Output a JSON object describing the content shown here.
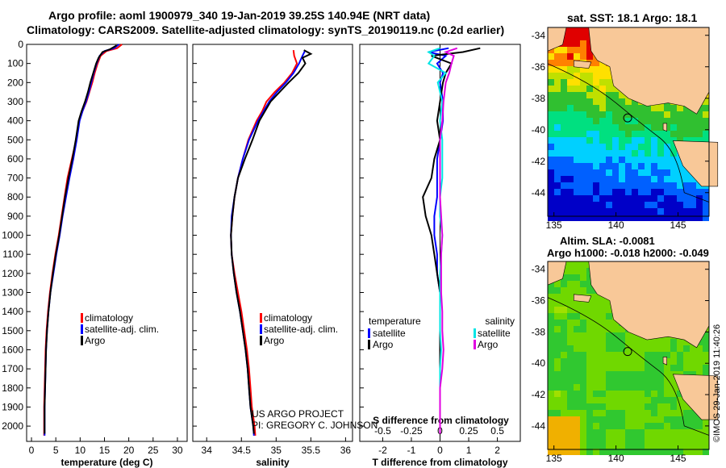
{
  "title_line1": "Argo profile: aoml 1900979_340 19-Jan-2019 39.25S 140.94E (NRT data)",
  "title_line2": "Climatology: CARS2009. Satellite-adjusted climatology: synTS_20190119.nc (0.2d earlier)",
  "credit_line1": "US ARGO PROJECT",
  "credit_line2": "PI: GREGORY C. JOHNSON",
  "timestamp": "©IMOS 29-Jan-2019 11:40:26",
  "colors": {
    "climatology": "#ff0000",
    "satellite": "#0000ff",
    "argo": "#000000",
    "sal_satellite": "#00e5e5",
    "sal_argo": "#e000e0",
    "land": "#f8c898"
  },
  "chart_data": [
    {
      "type": "line",
      "xlabel": "temperature (deg C)",
      "ylabel": "",
      "xlim": [
        -1,
        32
      ],
      "ylim": [
        2080,
        0
      ],
      "xticks": [
        0,
        5,
        10,
        15,
        20,
        25,
        30
      ],
      "yticks": [
        0,
        100,
        200,
        300,
        400,
        500,
        600,
        700,
        800,
        900,
        1000,
        1100,
        1200,
        1300,
        1400,
        1500,
        1600,
        1700,
        1800,
        1900,
        2000
      ],
      "legend": [
        "climatology",
        "satellite-adj. clim.",
        "Argo"
      ],
      "series": [
        {
          "name": "climatology",
          "color": "#ff0000",
          "x": [
            18.6,
            17.6,
            15.4,
            14.2,
            13.6,
            13.0,
            12.5,
            11.9,
            11.3,
            10.5,
            9.8,
            9.2,
            8.3,
            7.4,
            6.8,
            6.2,
            5.6,
            4.9,
            4.3,
            3.8,
            3.4,
            3.1,
            2.9,
            2.8,
            2.7,
            2.6,
            2.6
          ],
          "y": [
            0,
            20,
            35,
            60,
            100,
            150,
            200,
            250,
            300,
            350,
            400,
            500,
            600,
            700,
            800,
            900,
            1000,
            1100,
            1200,
            1300,
            1400,
            1500,
            1600,
            1700,
            1800,
            1900,
            2050
          ]
        },
        {
          "name": "satellite-adj. clim.",
          "color": "#0000ff",
          "x": [
            18.0,
            17.0,
            15.0,
            14.0,
            13.4,
            12.8,
            12.3,
            11.8,
            11.2,
            10.5,
            9.9,
            9.3,
            8.6,
            7.8,
            7.1,
            6.4,
            5.8,
            5.1,
            4.5,
            3.9,
            3.5,
            3.2,
            3.0,
            2.9,
            2.8,
            2.7,
            2.7
          ],
          "y": [
            0,
            20,
            35,
            60,
            100,
            150,
            200,
            250,
            300,
            350,
            400,
            500,
            600,
            700,
            800,
            900,
            1000,
            1100,
            1200,
            1300,
            1400,
            1500,
            1600,
            1700,
            1800,
            1900,
            2050
          ]
        },
        {
          "name": "Argo",
          "color": "#000000",
          "x": [
            17.5,
            16.2,
            14.6,
            13.8,
            13.3,
            12.7,
            12.1,
            11.6,
            11.0,
            10.3,
            9.7,
            9.1,
            8.4,
            7.6,
            6.9,
            6.3,
            5.7,
            5.0,
            4.4,
            3.9,
            3.5,
            3.2,
            3.0,
            2.9,
            2.8,
            2.7,
            2.7
          ],
          "y": [
            5,
            25,
            40,
            70,
            100,
            150,
            200,
            250,
            300,
            350,
            400,
            500,
            600,
            700,
            800,
            900,
            1000,
            1100,
            1200,
            1300,
            1400,
            1500,
            1600,
            1700,
            1800,
            1900,
            2040
          ]
        }
      ]
    },
    {
      "type": "line",
      "xlabel": "salinity",
      "ylabel": "",
      "xlim": [
        33.8,
        36.1
      ],
      "ylim": [
        2080,
        0
      ],
      "xticks": [
        34,
        34.5,
        35,
        35.5,
        36
      ],
      "legend": [
        "climatology",
        "satellite-adj. clim.",
        "Argo"
      ],
      "series": [
        {
          "name": "climatology",
          "color": "#ff0000",
          "x": [
            35.25,
            35.26,
            35.3,
            35.23,
            35.12,
            34.98,
            34.86,
            34.8,
            34.72,
            34.6,
            34.52,
            34.45,
            34.4,
            34.37,
            34.35,
            34.36,
            34.4,
            34.45,
            34.5,
            34.54,
            34.58,
            34.61,
            34.63,
            34.65,
            34.67,
            34.69,
            34.7
          ],
          "y": [
            30,
            60,
            100,
            150,
            200,
            250,
            300,
            350,
            400,
            500,
            600,
            700,
            800,
            900,
            1000,
            1100,
            1200,
            1300,
            1400,
            1500,
            1600,
            1700,
            1800,
            1900,
            1950,
            2000,
            2050
          ]
        },
        {
          "name": "satellite-adj. clim.",
          "color": "#0000ff",
          "x": [
            35.42,
            35.38,
            35.33,
            35.25,
            35.14,
            35.01,
            34.9,
            34.82,
            34.74,
            34.61,
            34.52,
            34.45,
            34.4,
            34.36,
            34.35,
            34.36,
            34.39,
            34.43,
            34.48,
            34.52,
            34.56,
            34.59,
            34.61,
            34.63,
            34.65,
            34.67,
            34.68
          ],
          "y": [
            30,
            60,
            100,
            150,
            200,
            250,
            300,
            350,
            400,
            500,
            600,
            700,
            800,
            900,
            1000,
            1100,
            1200,
            1300,
            1400,
            1500,
            1600,
            1700,
            1800,
            1900,
            1950,
            2000,
            2050
          ]
        },
        {
          "name": "Argo",
          "color": "#000000",
          "x": [
            35.4,
            35.5,
            35.38,
            35.42,
            35.32,
            35.18,
            35.05,
            34.92,
            34.84,
            34.76,
            34.66,
            34.55,
            34.45,
            34.4,
            34.37,
            34.35,
            34.36,
            34.39,
            34.43,
            34.48,
            34.52,
            34.56,
            34.59,
            34.61,
            34.63,
            34.65,
            34.67,
            34.68
          ],
          "y": [
            30,
            50,
            70,
            100,
            150,
            200,
            250,
            300,
            350,
            400,
            500,
            600,
            700,
            800,
            900,
            1000,
            1100,
            1200,
            1300,
            1400,
            1500,
            1600,
            1700,
            1800,
            1900,
            1950,
            2000,
            2040
          ]
        }
      ]
    },
    {
      "type": "line",
      "xlabel": "T difference from climatology",
      "xlabel_top": "S difference from climatology",
      "xlim": [
        -2.8,
        2.8
      ],
      "ylim": [
        2080,
        0
      ],
      "xticks": [
        -2,
        -1,
        0,
        1,
        2
      ],
      "xticks_top": [
        -0.5,
        -0.25,
        0,
        0.25,
        0.5
      ],
      "legend_left": {
        "heading": "temperature",
        "items": [
          "satellite",
          "Argo"
        ]
      },
      "legend_right": {
        "heading": "salinity",
        "items": [
          "satellite",
          "Argo"
        ]
      },
      "series": [
        {
          "name": "T satellite",
          "color": "#0000ff",
          "x": [
            0.3,
            -0.4,
            0.2,
            -0.1,
            0.1,
            0.0,
            0.1,
            0.1,
            0.0,
            -0.1,
            -0.1,
            -0.1,
            -0.2,
            -0.2,
            -0.1,
            -0.1,
            0.0,
            0.0,
            0.0,
            0.0,
            0.0,
            0.0,
            0.0,
            0.0
          ],
          "y": [
            20,
            40,
            60,
            100,
            150,
            200,
            300,
            400,
            500,
            600,
            700,
            800,
            900,
            1000,
            1100,
            1200,
            1300,
            1400,
            1500,
            1600,
            1700,
            1800,
            1900,
            2040
          ]
        },
        {
          "name": "T Argo",
          "color": "#000000",
          "x": [
            1.4,
            0.8,
            -0.3,
            0.4,
            0.2,
            0.1,
            0.0,
            -0.1,
            0.0,
            -0.2,
            -0.3,
            -0.6,
            -0.5,
            -0.3,
            -0.2,
            -0.1,
            0.0,
            0.0,
            0.0,
            0.0,
            0.0,
            0.0,
            0.0,
            0.0
          ],
          "y": [
            20,
            40,
            60,
            100,
            150,
            200,
            300,
            400,
            500,
            600,
            700,
            800,
            900,
            1000,
            1100,
            1200,
            1300,
            1400,
            1500,
            1600,
            1700,
            1800,
            1900,
            2040
          ]
        },
        {
          "name": "S satellite",
          "color": "#00e5e5",
          "x": [
            0.0,
            -0.1,
            -0.05,
            -0.1,
            0.05,
            -0.02,
            0.02,
            0.0,
            0.02,
            0.02,
            0.02,
            0.0,
            0.0,
            0.02,
            0.01,
            0.0,
            0.0,
            0.0,
            0.0,
            0.01,
            0.0,
            0.0,
            0.0,
            0.0
          ],
          "y": [
            20,
            40,
            60,
            100,
            150,
            200,
            300,
            400,
            500,
            600,
            700,
            800,
            900,
            1000,
            1100,
            1200,
            1300,
            1400,
            1500,
            1600,
            1700,
            1800,
            1900,
            2040
          ]
        },
        {
          "name": "S Argo",
          "color": "#e000e0",
          "x": [
            0.15,
            0.05,
            0.12,
            0.1,
            0.08,
            0.05,
            0.03,
            0.02,
            0.0,
            0.0,
            0.0,
            0.0,
            0.01,
            0.02,
            0.01,
            0.01,
            0.01,
            0.02,
            0.02,
            0.03,
            0.02,
            0.0,
            0.0,
            0.0
          ],
          "y": [
            20,
            40,
            60,
            100,
            150,
            200,
            300,
            400,
            500,
            600,
            700,
            800,
            900,
            1000,
            1100,
            1200,
            1300,
            1400,
            1500,
            1600,
            1700,
            1800,
            1900,
            2040
          ]
        }
      ]
    },
    {
      "type": "heatmap",
      "title": "sat. SST: 18.1 Argo: 18.1",
      "xlim": [
        134.5,
        147.5
      ],
      "ylim": [
        -45.5,
        -33.5
      ],
      "xticks": [
        135,
        140,
        145
      ],
      "yticks": [
        -34,
        -36,
        -38,
        -40,
        -42,
        -44
      ],
      "profile_location": [
        140.94,
        -39.25
      ]
    },
    {
      "type": "heatmap",
      "title": "Altim. SLA: -0.0081",
      "subtitle": "Argo h1000: -0.018 h2000: -0.049",
      "xlim": [
        134.5,
        147.5
      ],
      "ylim": [
        -45.5,
        -33.5
      ],
      "xticks": [
        135,
        140,
        145
      ],
      "yticks": [
        -34,
        -36,
        -38,
        -40,
        -42,
        -44
      ],
      "profile_location": [
        140.94,
        -39.25
      ]
    }
  ]
}
